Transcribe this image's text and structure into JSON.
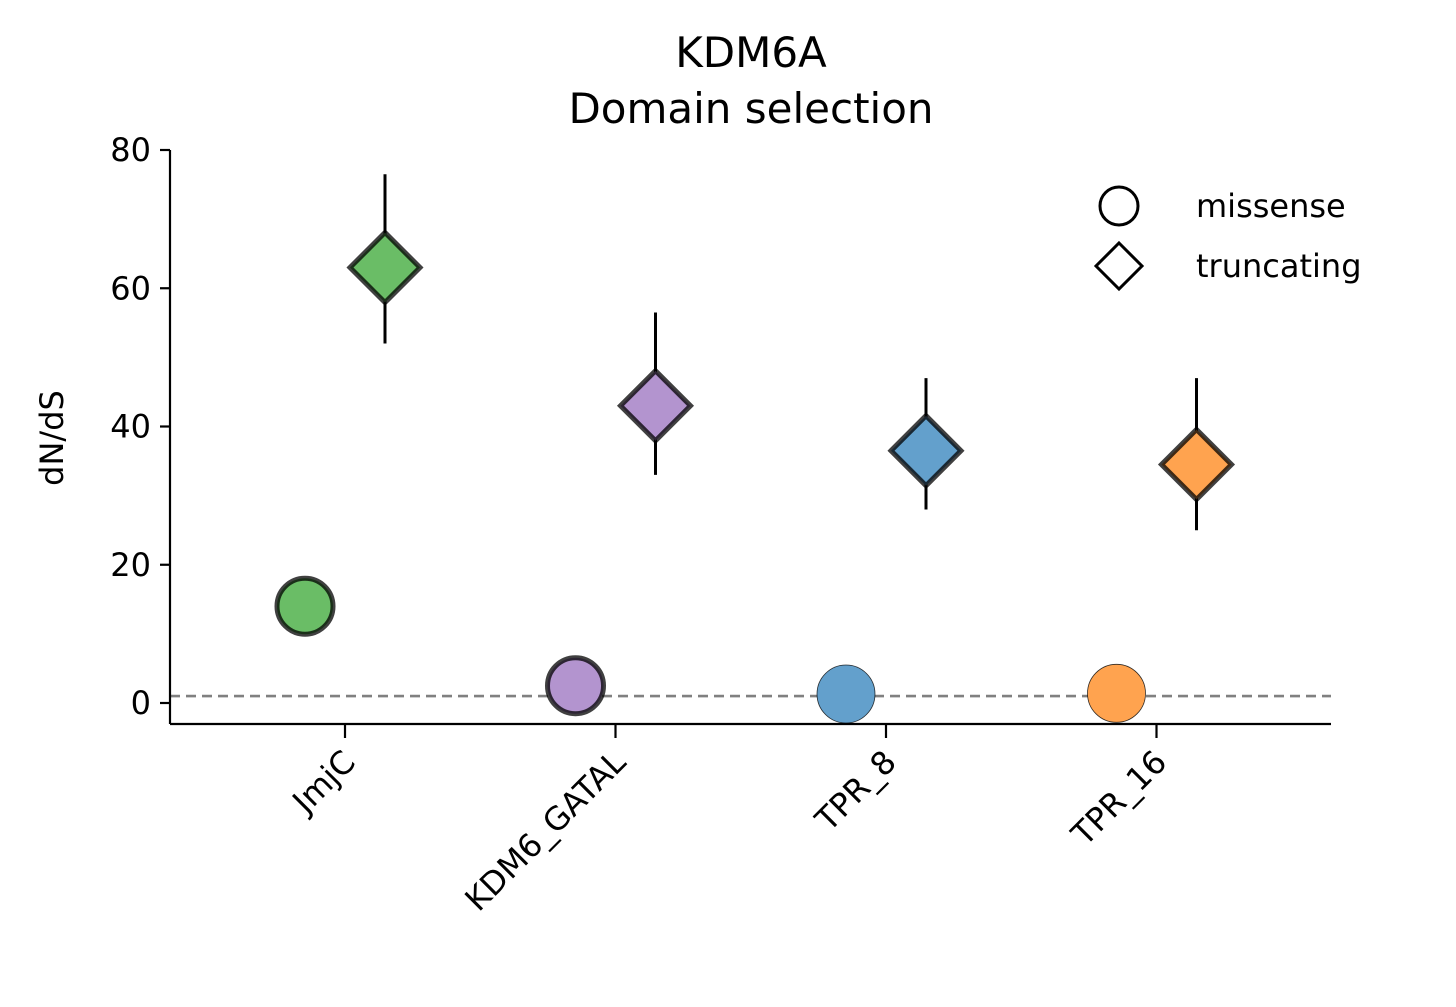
{
  "chart_data": {
    "type": "scatter",
    "title": "KDM6A",
    "subtitle": "Domain selection",
    "xlabel": "",
    "ylabel": "dN/dS",
    "ylim": [
      -3,
      80
    ],
    "yticks": [
      0,
      20,
      40,
      60,
      80
    ],
    "categories": [
      "JmjC",
      "KDM6_GATAL",
      "TPR_8",
      "TPR_16"
    ],
    "reference_line": 1,
    "grid": false,
    "legend_position": "top-right",
    "legend": [
      {
        "label": "missense",
        "marker": "circle"
      },
      {
        "label": "truncating",
        "marker": "diamond"
      }
    ],
    "series": [
      {
        "name": "missense",
        "marker": "circle",
        "values": [
          14,
          2.5,
          1.3,
          1.4
        ],
        "emphasized": [
          true,
          true,
          false,
          false
        ]
      },
      {
        "name": "truncating",
        "marker": "diamond",
        "values": [
          63,
          43,
          36.5,
          34.5
        ],
        "ci_low": [
          52,
          33,
          28,
          25
        ],
        "ci_high": [
          76.5,
          56.5,
          47,
          47
        ],
        "emphasized": [
          true,
          true,
          true,
          true
        ]
      }
    ],
    "category_colors": [
      "#6abd66",
      "#b394cf",
      "#63a0cc",
      "#ffa34f"
    ]
  }
}
